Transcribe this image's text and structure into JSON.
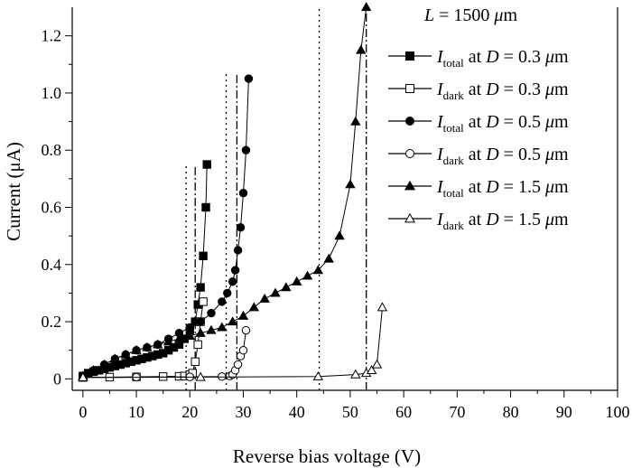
{
  "chart_data": {
    "type": "scatter",
    "xlabel": "Reverse bias voltage (V)",
    "ylabel": "Current (μA)",
    "annotation": "L = 1500 μm",
    "xlim": [
      -2,
      100
    ],
    "ylim": [
      -0.04,
      1.3
    ],
    "x_ticks": [
      0,
      10,
      20,
      30,
      40,
      50,
      60,
      70,
      80,
      90,
      100
    ],
    "y_ticks": [
      0,
      0.2,
      0.4,
      0.6,
      0.8,
      1.0,
      1.2
    ],
    "y_tick_labels": [
      "0",
      "0.2",
      "0.4",
      "0.6",
      "0.8",
      "1.0",
      "1.2"
    ],
    "series": [
      {
        "name": "I_total at D = 0.3 μm",
        "label_main": "I",
        "label_sub": "total",
        "label_rest": " at D = 0.3 μm",
        "marker": "square",
        "filled": true,
        "x": [
          0,
          1,
          2,
          3,
          4,
          5,
          6,
          7,
          8,
          9,
          10,
          11,
          12,
          13,
          14,
          15,
          16,
          17,
          18,
          19,
          20,
          21,
          21.5,
          22,
          22.5,
          23,
          23.2
        ],
        "y": [
          0.01,
          0.02,
          0.025,
          0.03,
          0.035,
          0.04,
          0.045,
          0.05,
          0.055,
          0.06,
          0.065,
          0.07,
          0.075,
          0.08,
          0.085,
          0.09,
          0.1,
          0.11,
          0.12,
          0.14,
          0.17,
          0.2,
          0.26,
          0.32,
          0.43,
          0.6,
          0.75
        ]
      },
      {
        "name": "I_dark at D = 0.3 μm",
        "label_main": "I",
        "label_sub": "dark",
        "label_rest": " at D = 0.3 μm",
        "marker": "square",
        "filled": false,
        "x": [
          0,
          5,
          10,
          15,
          18,
          19,
          20,
          20.5,
          21,
          21.5,
          22,
          22.5
        ],
        "y": [
          0.005,
          0.006,
          0.007,
          0.008,
          0.009,
          0.01,
          0.015,
          0.02,
          0.06,
          0.12,
          0.2,
          0.27
        ]
      },
      {
        "name": "I_total at D = 0.5 μm",
        "label_main": "I",
        "label_sub": "total",
        "label_rest": " at D = 0.5 μm",
        "marker": "circle",
        "filled": true,
        "x": [
          0,
          2,
          4,
          6,
          8,
          10,
          12,
          14,
          16,
          18,
          20,
          22,
          24,
          26,
          27,
          28,
          28.5,
          29,
          29.5,
          30,
          30.5,
          31
        ],
        "y": [
          0.01,
          0.03,
          0.05,
          0.07,
          0.085,
          0.1,
          0.11,
          0.12,
          0.14,
          0.16,
          0.18,
          0.2,
          0.23,
          0.27,
          0.3,
          0.34,
          0.38,
          0.45,
          0.53,
          0.65,
          0.8,
          1.05
        ]
      },
      {
        "name": "I_dark at D = 0.5 μm",
        "label_main": "I",
        "label_sub": "dark",
        "label_rest": " at D = 0.5 μm",
        "marker": "circle",
        "filled": false,
        "x": [
          0,
          10,
          20,
          26,
          27.5,
          28,
          28.5,
          29,
          29.5,
          30,
          30.5
        ],
        "y": [
          0.005,
          0.006,
          0.007,
          0.008,
          0.01,
          0.015,
          0.03,
          0.05,
          0.08,
          0.1,
          0.17
        ]
      },
      {
        "name": "I_total at D = 1.5 μm",
        "label_main": "I",
        "label_sub": "total",
        "label_rest": " at D = 1.5 μm",
        "marker": "triangle",
        "filled": true,
        "x": [
          0,
          2,
          4,
          6,
          8,
          10,
          12,
          14,
          16,
          18,
          20,
          22,
          24,
          26,
          28,
          30,
          32,
          34,
          36,
          38,
          40,
          42,
          44,
          46,
          48,
          50,
          51,
          52,
          53
        ],
        "y": [
          0.01,
          0.03,
          0.05,
          0.07,
          0.085,
          0.1,
          0.11,
          0.12,
          0.13,
          0.14,
          0.15,
          0.16,
          0.17,
          0.18,
          0.2,
          0.22,
          0.25,
          0.28,
          0.3,
          0.32,
          0.34,
          0.36,
          0.38,
          0.42,
          0.5,
          0.68,
          0.9,
          1.15,
          1.3
        ]
      },
      {
        "name": "I_dark at D = 1.5 μm",
        "label_main": "I",
        "label_sub": "dark",
        "label_rest": " at D = 1.5 μm",
        "marker": "triangle",
        "filled": false,
        "x": [
          0,
          22,
          44,
          51,
          53,
          54,
          55,
          56
        ],
        "y": [
          0.005,
          0.006,
          0.008,
          0.015,
          0.02,
          0.03,
          0.05,
          0.25
        ]
      }
    ],
    "reference_lines": [
      {
        "x": 19.3,
        "style": "dotted",
        "y_top": 0.75
      },
      {
        "x": 21,
        "style": "dashdot",
        "y_top": 0.75
      },
      {
        "x": 26.8,
        "style": "dotted",
        "y_top": 1.07
      },
      {
        "x": 28.8,
        "style": "dashdot",
        "y_top": 1.07
      },
      {
        "x": 44.2,
        "style": "dotted",
        "y_top": 1.3
      },
      {
        "x": 53,
        "style": "dashdot",
        "y_top": 1.3
      }
    ],
    "grid": false,
    "legend_placement": "top-right"
  }
}
